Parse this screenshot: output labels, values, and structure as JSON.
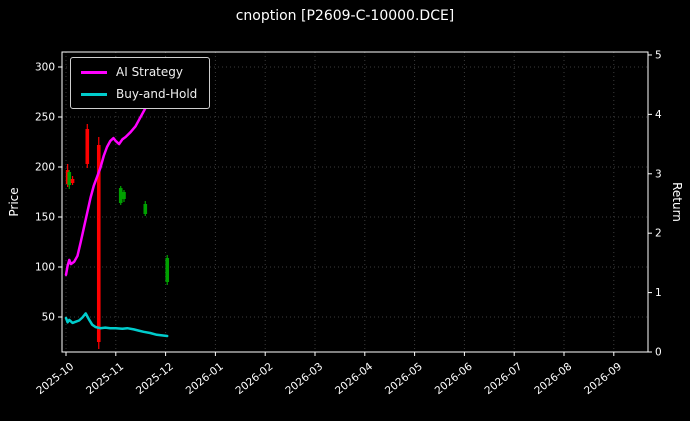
{
  "colors": {
    "background": "#000000",
    "text": "#ffffff",
    "grid": "#3d3d3d",
    "axis": "#ffffff",
    "candle_up": "#00a000",
    "candle_down": "#ff0000"
  },
  "chart_data": {
    "type": "candlestick+line",
    "title": "cnoption [P2609-C-10000.DCE]",
    "x_axis": {
      "tick_labels": [
        "2025-10",
        "2025-11",
        "2025-12",
        "2026-01",
        "2026-02",
        "2026-03",
        "2026-04",
        "2026-05",
        "2026-06",
        "2026-07",
        "2026-08",
        "2026-09"
      ]
    },
    "y_left": {
      "label": "Price",
      "ticks": [
        50,
        100,
        150,
        200,
        250,
        300
      ]
    },
    "y_right": {
      "label": "Return",
      "ticks": [
        0,
        1,
        2,
        3,
        4,
        5
      ]
    },
    "series": [
      {
        "name": "AI Strategy",
        "color": "#ff00ff",
        "axis": "return",
        "points": [
          [
            "2025-10-01",
            1.3
          ],
          [
            "2025-10-02",
            1.45
          ],
          [
            "2025-10-03",
            1.55
          ],
          [
            "2025-10-04",
            1.48
          ],
          [
            "2025-10-06",
            1.52
          ],
          [
            "2025-10-08",
            1.62
          ],
          [
            "2025-10-10",
            1.85
          ],
          [
            "2025-10-12",
            2.1
          ],
          [
            "2025-10-14",
            2.35
          ],
          [
            "2025-10-16",
            2.6
          ],
          [
            "2025-10-18",
            2.8
          ],
          [
            "2025-10-20",
            2.95
          ],
          [
            "2025-10-22",
            3.1
          ],
          [
            "2025-10-24",
            3.3
          ],
          [
            "2025-10-26",
            3.45
          ],
          [
            "2025-10-28",
            3.55
          ],
          [
            "2025-10-30",
            3.6
          ],
          [
            "2025-11-01",
            3.55
          ],
          [
            "2025-11-03",
            3.5
          ],
          [
            "2025-11-05",
            3.58
          ],
          [
            "2025-11-07",
            3.62
          ],
          [
            "2025-11-10",
            3.7
          ],
          [
            "2025-11-13",
            3.8
          ],
          [
            "2025-11-16",
            3.95
          ],
          [
            "2025-11-19",
            4.1
          ],
          [
            "2025-11-22",
            4.3
          ],
          [
            "2025-11-25",
            4.45
          ],
          [
            "2025-11-27",
            4.6
          ],
          [
            "2025-11-29",
            4.78
          ]
        ]
      },
      {
        "name": "Buy-and-Hold",
        "color": "#00cccc",
        "axis": "return",
        "points": [
          [
            "2025-10-01",
            0.57
          ],
          [
            "2025-10-02",
            0.5
          ],
          [
            "2025-10-03",
            0.54
          ],
          [
            "2025-10-05",
            0.49
          ],
          [
            "2025-10-07",
            0.51
          ],
          [
            "2025-10-09",
            0.53
          ],
          [
            "2025-10-11",
            0.58
          ],
          [
            "2025-10-13",
            0.65
          ],
          [
            "2025-10-15",
            0.55
          ],
          [
            "2025-10-17",
            0.46
          ],
          [
            "2025-10-19",
            0.42
          ],
          [
            "2025-10-22",
            0.4
          ],
          [
            "2025-10-25",
            0.41
          ],
          [
            "2025-10-28",
            0.4
          ],
          [
            "2025-11-01",
            0.4
          ],
          [
            "2025-11-05",
            0.39
          ],
          [
            "2025-11-08",
            0.4
          ],
          [
            "2025-11-12",
            0.38
          ],
          [
            "2025-11-15",
            0.36
          ],
          [
            "2025-11-18",
            0.34
          ],
          [
            "2025-11-22",
            0.32
          ],
          [
            "2025-11-26",
            0.29
          ],
          [
            "2025-12-02",
            0.27
          ]
        ]
      }
    ],
    "candlesticks": {
      "axis": "price",
      "data": [
        {
          "date": "2025-10-02",
          "open": 197,
          "high": 203,
          "low": 180,
          "close": 183
        },
        {
          "date": "2025-10-03",
          "open": 182,
          "high": 197,
          "low": 178,
          "close": 195
        },
        {
          "date": "2025-10-05",
          "open": 188,
          "high": 191,
          "low": 182,
          "close": 184
        },
        {
          "date": "2025-10-14",
          "open": 238,
          "high": 243,
          "low": 199,
          "close": 203
        },
        {
          "date": "2025-10-21",
          "open": 222,
          "high": 230,
          "low": 18,
          "close": 25
        },
        {
          "date": "2025-11-04",
          "open": 164,
          "high": 181,
          "low": 162,
          "close": 179
        },
        {
          "date": "2025-11-06",
          "open": 168,
          "high": 177,
          "low": 165,
          "close": 175
        },
        {
          "date": "2025-11-19",
          "open": 153,
          "high": 166,
          "low": 151,
          "close": 163
        },
        {
          "date": "2025-12-02",
          "open": 85,
          "high": 112,
          "low": 82,
          "close": 109
        }
      ]
    }
  }
}
